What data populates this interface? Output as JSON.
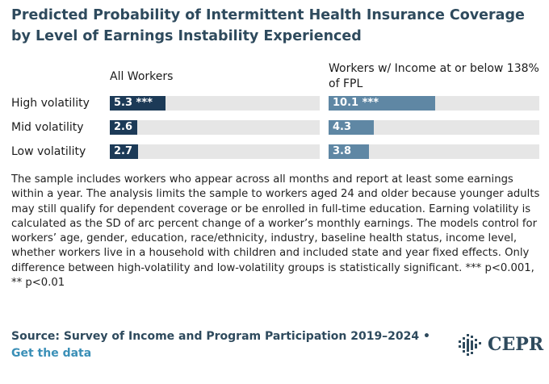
{
  "title": "Predicted Probability of Intermittent Health Insurance Coverage by Level of Earnings Instability Experienced",
  "colors": {
    "all_workers": "#1c3a57",
    "low_income": "#5f87a4",
    "track": "#e6e6e6",
    "title": "#2e4a5d",
    "link": "#3a8fb7"
  },
  "chart_data": {
    "type": "bar",
    "orientation": "horizontal",
    "title": "Predicted Probability of Intermittent Health Insurance Coverage by Level of Earnings Instability Experienced",
    "categories": [
      "High volatility",
      "Mid volatility",
      "Low volatility"
    ],
    "xlim": [
      0,
      20
    ],
    "series": [
      {
        "name": "All Workers",
        "values": [
          5.3,
          2.6,
          2.7
        ],
        "labels": [
          "5.3 ***",
          "2.6",
          "2.7"
        ]
      },
      {
        "name": "Workers w/ Income at or below 138% of FPL",
        "values": [
          10.1,
          4.3,
          3.8
        ],
        "labels": [
          "10.1 ***",
          "4.3",
          "3.8"
        ]
      }
    ]
  },
  "panel_titles": [
    "All Workers",
    "Workers w/ Income at or below 138% of FPL"
  ],
  "note": "The sample includes workers who appear across all months and report at least some earnings within a year. The analysis limits the sample to workers aged 24 and older because younger adults may still qualify for dependent coverage or be enrolled in full-time education. Earning volatility is calculated as the SD of arc percent change of a worker’s monthly earnings. The models control for workers’ age, gender, education, race/ethnicity, industry, baseline health status, income level, whether workers live in a household with children and included state and year fixed effects. Only difference between high-volatility and low-volatility groups is statistically significant. *** p<0.001, ** p<0.01",
  "source": "Source: Survey of Income and Program Participation 2019–2024 •",
  "get_data_link": "Get the data",
  "logo": {
    "text": "CEPR",
    "icon": "cepr-logo-icon"
  }
}
